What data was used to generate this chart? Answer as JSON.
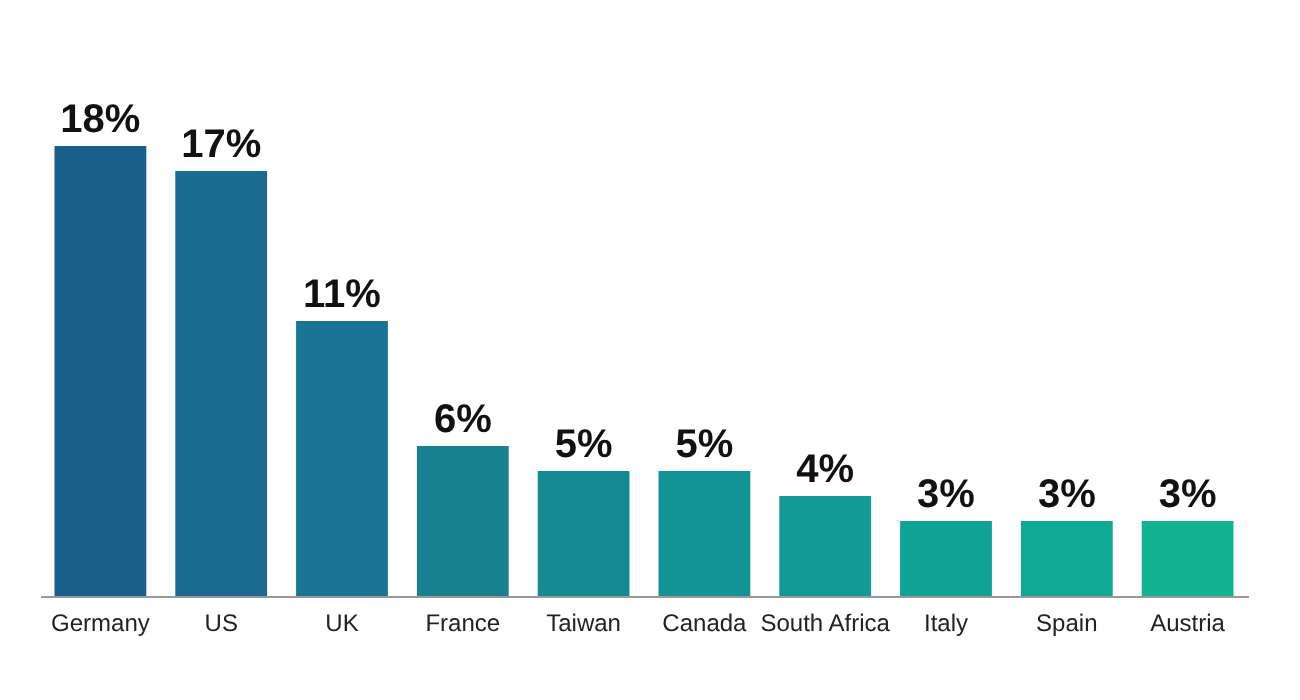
{
  "chart_data": {
    "type": "bar",
    "categories": [
      "Germany",
      "US",
      "UK",
      "France",
      "Taiwan",
      "Canada",
      "South Africa",
      "Italy",
      "Spain",
      "Austria"
    ],
    "values": [
      18,
      17,
      11,
      6,
      5,
      5,
      4,
      3,
      3,
      3
    ],
    "value_labels": [
      "18%",
      "17%",
      "11%",
      "6%",
      "5%",
      "5%",
      "4%",
      "3%",
      "3%",
      "3%"
    ],
    "colors": [
      "#1a5e8a",
      "#1b6a8f",
      "#1a7594",
      "#17818f",
      "#168a92",
      "#149394",
      "#129a96",
      "#10a295",
      "#10a993",
      "#12b291"
    ],
    "grid": false
  }
}
